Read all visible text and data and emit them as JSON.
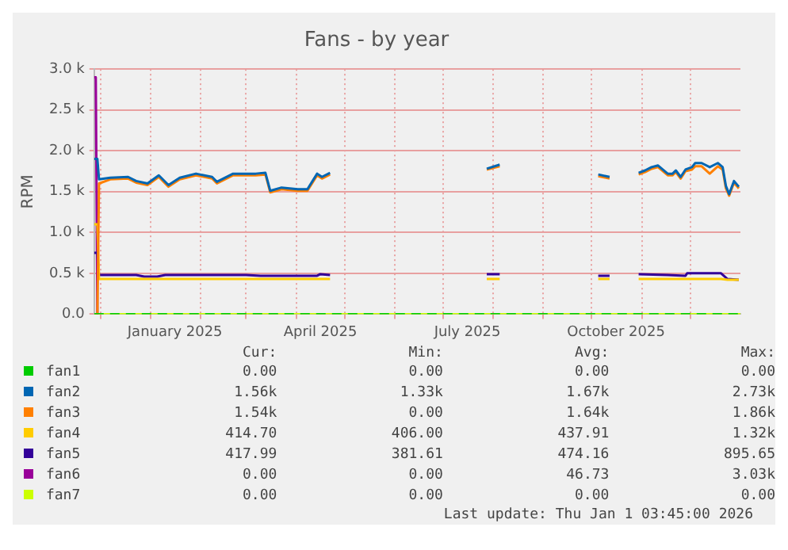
{
  "chart_data": {
    "type": "line",
    "title": "Fans - by year",
    "ylabel": "RPM",
    "xlim": [
      "2024-11-27",
      "2026-01-01"
    ],
    "xticks": [
      {
        "value": "2024-12-01",
        "label": null
      },
      {
        "value": "2025-01-01",
        "label": null
      },
      {
        "value": "2025-01-16",
        "label": "January 2025"
      },
      {
        "value": "2025-02-01",
        "label": null
      },
      {
        "value": "2025-03-01",
        "label": null
      },
      {
        "value": "2025-04-01",
        "label": null
      },
      {
        "value": "2025-04-16",
        "label": "April 2025"
      },
      {
        "value": "2025-05-01",
        "label": null
      },
      {
        "value": "2025-06-01",
        "label": null
      },
      {
        "value": "2025-07-01",
        "label": null
      },
      {
        "value": "2025-07-16",
        "label": "July 2025"
      },
      {
        "value": "2025-08-01",
        "label": null
      },
      {
        "value": "2025-09-01",
        "label": null
      },
      {
        "value": "2025-10-01",
        "label": null
      },
      {
        "value": "2025-10-16",
        "label": "October 2025"
      },
      {
        "value": "2025-11-01",
        "label": null
      },
      {
        "value": "2025-12-01",
        "label": null
      }
    ],
    "ylim": [
      0,
      3000
    ],
    "yticks": [
      {
        "value": 0,
        "label": "0.0"
      },
      {
        "value": 500,
        "label": "0.5 k"
      },
      {
        "value": 1000,
        "label": "1.0 k"
      },
      {
        "value": 1500,
        "label": "1.5 k"
      },
      {
        "value": 2000,
        "label": "2.0 k"
      },
      {
        "value": 2500,
        "label": "2.5 k"
      },
      {
        "value": 3000,
        "label": "3.0 k"
      }
    ],
    "grid": true,
    "legend": "bottom",
    "marker": "none",
    "line_style": "solid",
    "series": [
      {
        "name": "fan1",
        "color": "#00cc00",
        "line_style": "dashed",
        "x": [
          "2024-11-27",
          "2026-01-01"
        ],
        "values": [
          0,
          0
        ]
      },
      {
        "name": "fan2",
        "color": "#0066b3",
        "x": [
          "2024-11-27",
          "2024-11-29",
          "2024-11-30",
          "2024-12-07",
          "2024-12-18",
          "2024-12-23",
          "2024-12-30",
          "2025-01-06",
          "2025-01-12",
          "2025-01-19",
          "2025-01-29",
          "2025-02-08",
          "2025-02-11",
          "2025-02-21",
          "2025-03-07",
          "2025-03-13",
          "2025-03-16",
          "2025-03-23",
          "2025-04-02",
          "2025-04-08",
          "2025-04-14",
          "2025-04-17",
          "2025-04-22",
          "2025-06-01",
          "2025-07-28",
          "2025-08-05",
          "2025-09-01",
          "2025-10-05",
          "2025-10-12",
          "2025-10-20",
          "2025-10-30",
          "2025-11-03",
          "2025-11-07",
          "2025-11-11",
          "2025-11-17",
          "2025-11-20",
          "2025-11-22",
          "2025-11-25",
          "2025-11-28",
          "2025-12-02",
          "2025-12-04",
          "2025-12-08",
          "2025-12-13",
          "2025-12-18",
          "2025-12-21",
          "2025-12-23",
          "2025-12-25",
          "2025-12-28",
          "2025-12-31"
        ],
        "values": [
          1900,
          1900,
          1650,
          1670,
          1680,
          1630,
          1600,
          1700,
          1580,
          1670,
          1720,
          1680,
          1620,
          1720,
          1720,
          1730,
          1510,
          1550,
          1530,
          1530,
          1720,
          1680,
          1730,
          null,
          1780,
          1830,
          null,
          1710,
          1680,
          null,
          1730,
          1760,
          1800,
          1820,
          1720,
          1720,
          1760,
          1680,
          1770,
          1800,
          1850,
          1850,
          1800,
          1850,
          1800,
          1570,
          1470,
          1630,
          1560
        ]
      },
      {
        "name": "fan3",
        "color": "#ff8000",
        "x": [
          "2024-11-27",
          "2024-11-29",
          "2024-11-30",
          "2024-12-07",
          "2024-12-18",
          "2024-12-23",
          "2024-12-30",
          "2025-01-06",
          "2025-01-12",
          "2025-01-19",
          "2025-01-29",
          "2025-02-08",
          "2025-02-11",
          "2025-02-21",
          "2025-03-07",
          "2025-03-13",
          "2025-03-16",
          "2025-03-23",
          "2025-04-02",
          "2025-04-08",
          "2025-04-14",
          "2025-04-17",
          "2025-04-22",
          "2025-06-01",
          "2025-07-28",
          "2025-08-05",
          "2025-09-01",
          "2025-10-05",
          "2025-10-12",
          "2025-10-20",
          "2025-10-30",
          "2025-11-03",
          "2025-11-07",
          "2025-11-11",
          "2025-11-17",
          "2025-11-20",
          "2025-11-22",
          "2025-11-25",
          "2025-11-28",
          "2025-12-02",
          "2025-12-04",
          "2025-12-08",
          "2025-12-13",
          "2025-12-18",
          "2025-12-21",
          "2025-12-23",
          "2025-12-25",
          "2025-12-28",
          "2025-12-31"
        ],
        "values": [
          0,
          0,
          1600,
          1650,
          1660,
          1610,
          1580,
          1680,
          1560,
          1650,
          1700,
          1660,
          1600,
          1700,
          1700,
          1710,
          1490,
          1530,
          1510,
          1510,
          1700,
          1660,
          1710,
          null,
          1770,
          1810,
          null,
          1690,
          1660,
          null,
          1710,
          1740,
          1780,
          1800,
          1700,
          1700,
          1740,
          1660,
          1750,
          1770,
          1810,
          1810,
          1720,
          1810,
          1770,
          1540,
          1450,
          1610,
          1540
        ]
      },
      {
        "name": "fan4",
        "color": "#ffcc00",
        "x": [
          "2024-11-27",
          "2024-11-29",
          "2024-11-30",
          "2025-04-22",
          "2025-06-01",
          "2025-07-28",
          "2025-08-05",
          "2025-09-01",
          "2025-10-05",
          "2025-10-12",
          "2025-10-20",
          "2025-10-30",
          "2025-12-20",
          "2025-12-24",
          "2025-12-31"
        ],
        "values": [
          1100,
          1100,
          430,
          430,
          null,
          430,
          430,
          null,
          430,
          430,
          null,
          430,
          430,
          420,
          420
        ]
      },
      {
        "name": "fan5",
        "color": "#330099",
        "x": [
          "2024-11-27",
          "2024-11-29",
          "2024-11-30",
          "2024-12-23",
          "2024-12-28",
          "2025-01-05",
          "2025-01-10",
          "2025-03-01",
          "2025-03-10",
          "2025-04-14",
          "2025-04-16",
          "2025-04-22",
          "2025-06-01",
          "2025-07-28",
          "2025-08-05",
          "2025-09-01",
          "2025-10-05",
          "2025-10-12",
          "2025-10-20",
          "2025-10-30",
          "2025-11-17",
          "2025-11-28",
          "2025-11-29",
          "2025-12-20",
          "2025-12-24",
          "2025-12-31"
        ],
        "values": [
          750,
          750,
          480,
          480,
          460,
          460,
          480,
          480,
          470,
          470,
          490,
          480,
          null,
          490,
          490,
          null,
          470,
          470,
          null,
          490,
          480,
          470,
          500,
          500,
          430,
          420
        ]
      },
      {
        "name": "fan6",
        "color": "#990099",
        "x": [
          "2024-11-27",
          "2024-11-28",
          "2024-11-29"
        ],
        "values": [
          2900,
          2900,
          0
        ]
      },
      {
        "name": "fan7",
        "color": "#ccff00",
        "x": [
          "2024-11-27",
          "2026-01-01"
        ],
        "values": [
          0,
          0
        ]
      }
    ],
    "annotations": [
      "Cur:",
      "Min:",
      "Avg:",
      "Max:",
      "0.00",
      "0.00",
      "0.00",
      "0.00",
      "1.56k",
      "1.33k",
      "1.67k",
      "2.73k",
      "1.54k",
      "0.00",
      "1.64k",
      "1.86k",
      "414.70",
      "406.00",
      "437.91",
      "1.32k",
      "417.99",
      "381.61",
      "474.16",
      "895.65",
      "0.00",
      "0.00",
      "46.73",
      "3.03k",
      "0.00",
      "0.00",
      "0.00",
      "0.00",
      "Last update: Thu Jan  1 03:45:00 2026"
    ]
  }
}
